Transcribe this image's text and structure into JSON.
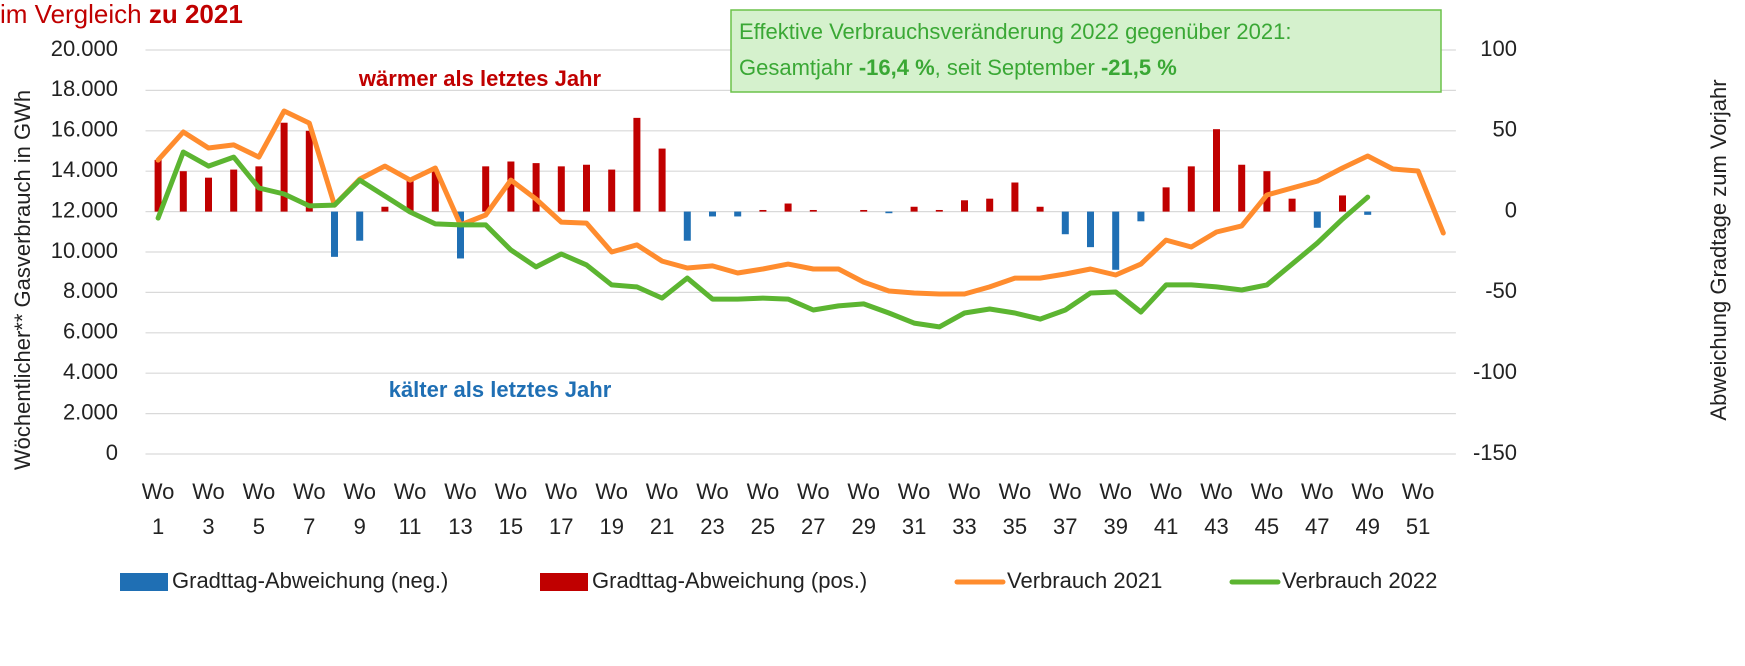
{
  "chart_data": {
    "type": "combo",
    "title": "im Vergleich",
    "title_bold": "zu 2021",
    "ylabel": "Wöchentlicher** Gasverbrauch in GWh",
    "y2label": "Abweichung Gradtage zum Vorjahr",
    "annotations": [
      "wärmer als letztes Jahr",
      "kälter als letztes Jahr"
    ],
    "box": {
      "line1": "Effektive Verbrauchsveränderung 2022 gegenüber 2021:",
      "line2": [
        "Gesamtjahr ",
        "-16,4 %",
        ", seit September ",
        "-21,5 %"
      ]
    },
    "categories": [
      "Wo 1",
      null,
      "Wo 3",
      null,
      "Wo 5",
      null,
      "Wo 7",
      null,
      "Wo 9",
      null,
      "Wo 11",
      null,
      "Wo 13",
      null,
      "Wo 15",
      null,
      "Wo 17",
      null,
      "Wo 19",
      null,
      "Wo 21",
      null,
      "Wo 23",
      null,
      "Wo 25",
      null,
      "Wo 27",
      null,
      "Wo 29",
      null,
      "Wo 31",
      null,
      "Wo 33",
      null,
      "Wo 35",
      null,
      "Wo 37",
      null,
      "Wo 39",
      null,
      "Wo 41",
      null,
      "Wo 43",
      null,
      "Wo 45",
      null,
      "Wo 47",
      null,
      "Wo 49",
      null,
      "Wo 51",
      null
    ],
    "ylim": [
      0,
      20000
    ],
    "yticks": [
      0,
      {
        "value": 2000,
        "label": "2.000"
      },
      {
        "value": 4000,
        "label": "4.000"
      },
      {
        "value": 6000,
        "label": "6.000"
      },
      {
        "value": 8000,
        "label": "8.000"
      },
      {
        "value": 10000,
        "label": "10.000"
      },
      {
        "value": 12000,
        "label": "12.000"
      },
      {
        "value": 14000,
        "label": "14.000"
      },
      {
        "value": 16000,
        "label": "16.000"
      },
      {
        "value": 18000,
        "label": "18.000"
      },
      {
        "value": 20000,
        "label": "20.000"
      }
    ],
    "y2lim": [
      -150,
      100
    ],
    "y2ticks": [
      -150,
      -100,
      -50,
      0,
      50,
      100
    ],
    "grid": true,
    "legend": "bottom",
    "series": [
      {
        "name": "Gradttag-Abweichung (neg.)",
        "type": "bar",
        "axis": "y2",
        "color": "#1f6fb4",
        "values": [
          null,
          null,
          null,
          null,
          null,
          null,
          null,
          -28,
          -18,
          null,
          null,
          null,
          -29,
          null,
          null,
          null,
          null,
          null,
          null,
          null,
          null,
          -18,
          -3,
          -3,
          null,
          null,
          null,
          null,
          null,
          -1,
          null,
          null,
          null,
          null,
          null,
          null,
          -14,
          -22,
          -36,
          -6,
          null,
          null,
          null,
          null,
          null,
          null,
          -10,
          null,
          -2,
          null,
          null,
          null
        ]
      },
      {
        "name": "Gradttag-Abweichung (pos.)",
        "type": "bar",
        "axis": "y2",
        "color": "#c00000",
        "values": [
          32,
          25,
          21,
          26,
          28,
          55,
          50,
          null,
          null,
          3,
          19,
          26,
          null,
          28,
          31,
          30,
          28,
          29,
          26,
          58,
          39,
          null,
          null,
          null,
          1,
          5,
          1,
          0,
          1,
          null,
          3,
          1,
          7,
          8,
          18,
          3,
          null,
          null,
          null,
          null,
          15,
          28,
          51,
          29,
          25,
          8,
          null,
          10,
          null,
          null,
          null,
          null
        ]
      },
      {
        "name": "Verbrauch 2021",
        "type": "line",
        "color": "#ff8c2e",
        "values": [
          14550,
          15940,
          15150,
          15300,
          14700,
          16980,
          16380,
          12320,
          13610,
          14250,
          13560,
          14160,
          11340,
          11830,
          13560,
          12620,
          11480,
          11430,
          10000,
          10350,
          9550,
          9210,
          9310,
          8960,
          9160,
          9400,
          9160,
          9160,
          8510,
          8070,
          7970,
          7920,
          7920,
          8270,
          8710,
          8710,
          8910,
          9160,
          8860,
          9400,
          10590,
          10250,
          10990,
          11290,
          12820,
          13170,
          13510,
          14160,
          14750,
          14110,
          14010,
          10940
        ]
      },
      {
        "name": "Verbrauch 2022",
        "type": "line",
        "color": "#5cb531",
        "values": [
          11680,
          14950,
          14250,
          14700,
          13170,
          12870,
          12280,
          12320,
          13560,
          12770,
          11980,
          11390,
          11340,
          11340,
          10100,
          9260,
          9900,
          9360,
          8370,
          8270,
          7720,
          8710,
          7670,
          7670,
          7720,
          7670,
          7130,
          7330,
          7430,
          6980,
          6480,
          6290,
          6980,
          7180,
          6980,
          6680,
          7130,
          7970,
          8020,
          7030,
          8370,
          8370,
          8270,
          8120,
          8370,
          9400,
          10440,
          11630,
          12720,
          null,
          null,
          null
        ]
      }
    ]
  }
}
